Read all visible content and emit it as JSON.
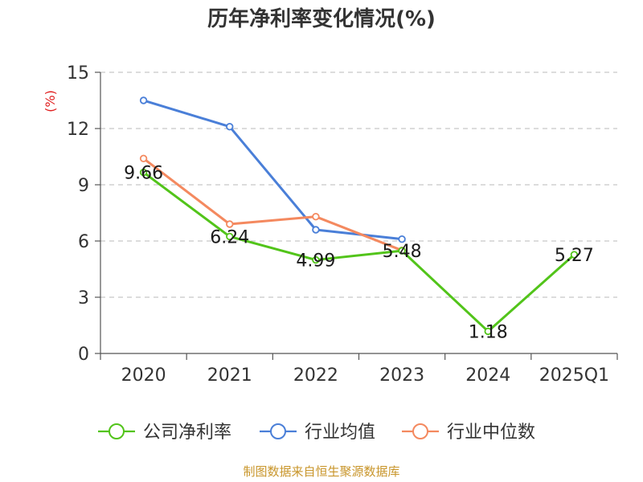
{
  "chart_data": {
    "type": "line",
    "title": "历年净利率变化情况(%)",
    "ylabel": "(%)",
    "categories": [
      "2020",
      "2021",
      "2022",
      "2023",
      "2024",
      "2025Q1"
    ],
    "ylim": [
      0,
      15
    ],
    "yticks": [
      0,
      3,
      6,
      9,
      12,
      15
    ],
    "grid": true,
    "legend_position": "bottom",
    "series": [
      {
        "name": "公司净利率",
        "color": "#52c41a",
        "values": [
          9.66,
          6.24,
          4.99,
          5.48,
          1.18,
          5.27
        ],
        "labels": [
          "9.66",
          "6.24",
          "4.99",
          "5.48",
          "1.18",
          "5.27"
        ]
      },
      {
        "name": "行业均值",
        "color": "#4a7fd8",
        "values": [
          13.5,
          12.1,
          6.6,
          6.1,
          null,
          null
        ]
      },
      {
        "name": "行业中位数",
        "color": "#f4895f",
        "values": [
          10.4,
          6.9,
          7.3,
          5.5,
          null,
          null
        ]
      }
    ],
    "source": "制图数据来自恒生聚源数据库"
  }
}
